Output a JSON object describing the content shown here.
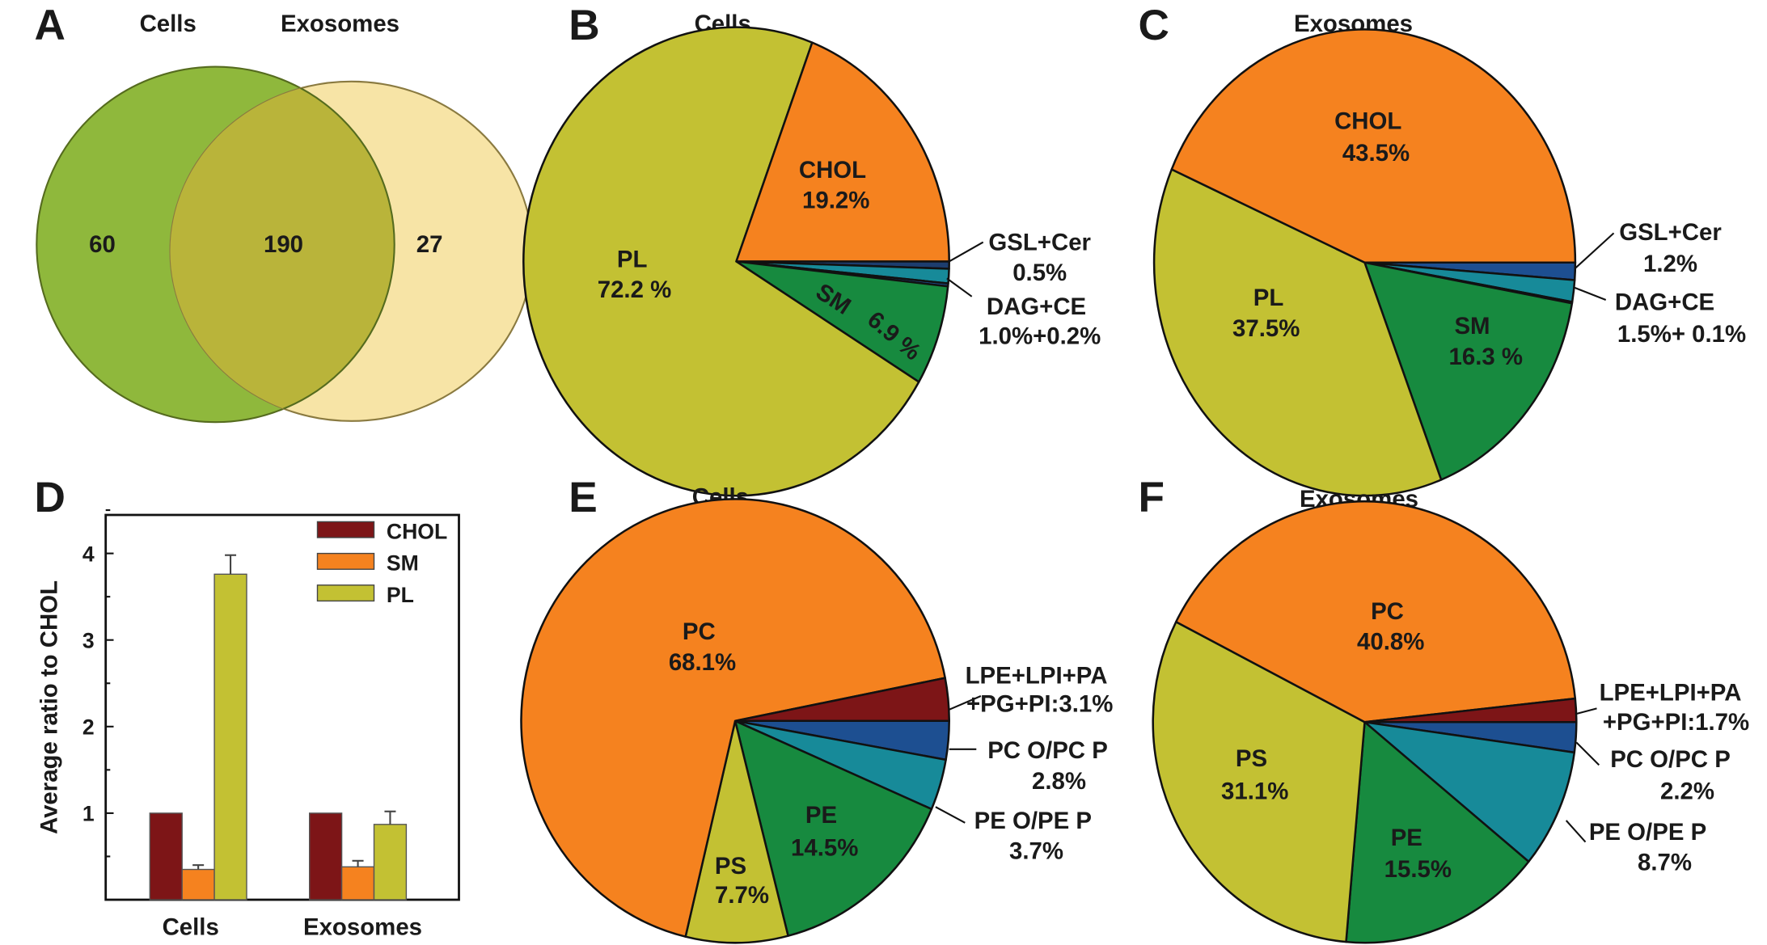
{
  "panels": {
    "A": "A",
    "B": "B",
    "C": "C",
    "D": "D",
    "E": "E",
    "F": "F"
  },
  "colors": {
    "orange": "#f5821f",
    "olive": "#c3c133",
    "green": "#178a3f",
    "navy": "#1d4f91",
    "teal": "#178a99",
    "darkred": "#7d1517",
    "venn_green": "#8fb83c",
    "venn_yellow": "#f7e4a6",
    "venn_overlap": "#b9b43a"
  },
  "chart_data": [
    {
      "panel": "A",
      "type": "venn",
      "set_labels": [
        "Cells",
        "Exosomes"
      ],
      "values": {
        "cells_only": "60",
        "both": "190",
        "exosomes_only": "27"
      }
    },
    {
      "panel": "B",
      "type": "pie",
      "title": "Cells",
      "slices": [
        {
          "name": "GSL+Cer",
          "value": 0.5,
          "color": "#1d3d6e"
        },
        {
          "name": "DAG",
          "value": 1.0,
          "color": "#178a99"
        },
        {
          "name": "CE",
          "value": 0.2,
          "color": "#1d4f91"
        },
        {
          "name": "SM",
          "value": 6.9,
          "color": "#178a3f"
        },
        {
          "name": "PL",
          "value": 72.2,
          "color": "#c3c133"
        },
        {
          "name": "CHOL",
          "value": 19.2,
          "color": "#f5821f"
        }
      ],
      "labels": {
        "chol": "CHOL",
        "chol_pct": "19.2%",
        "pl": "PL",
        "pl_pct": "72.2 %",
        "sm": "SM",
        "sm_pct": "6.9 %",
        "gsl": "GSL+Cer",
        "gsl_pct": "0.5%",
        "dag": "DAG+CE",
        "dag_pct": "1.0%+0.2%"
      }
    },
    {
      "panel": "C",
      "type": "pie",
      "title": "Exosomes",
      "slices": [
        {
          "name": "GSL+Cer",
          "value": 1.2,
          "color": "#1d4f91"
        },
        {
          "name": "DAG",
          "value": 1.5,
          "color": "#178a99"
        },
        {
          "name": "CE",
          "value": 0.1,
          "color": "#1d4f91"
        },
        {
          "name": "SM",
          "value": 16.3,
          "color": "#178a3f"
        },
        {
          "name": "PL",
          "value": 37.5,
          "color": "#c3c133"
        },
        {
          "name": "CHOL",
          "value": 43.5,
          "color": "#f5821f"
        }
      ],
      "labels": {
        "chol": "CHOL",
        "chol_pct": "43.5%",
        "pl": "PL",
        "pl_pct": "37.5%",
        "sm": "SM",
        "sm_pct": "16.3 %",
        "gsl": "GSL+Cer",
        "gsl_pct": "1.2%",
        "dag": "DAG+CE",
        "dag_pct": "1.5%+ 0.1%"
      }
    },
    {
      "panel": "D",
      "type": "bar",
      "categories": [
        "Cells",
        "Exosomes"
      ],
      "ylabel": "Average ratio to CHOL",
      "xlabel": "",
      "ylim": [
        0,
        4.5
      ],
      "yticks": [
        1,
        2,
        3,
        4
      ],
      "legend": "top-right",
      "series": [
        {
          "name": "CHOL",
          "values": [
            1.0,
            1.0
          ],
          "errors": [
            0,
            0
          ],
          "color": "#7d1517"
        },
        {
          "name": "SM",
          "values": [
            0.35,
            0.38
          ],
          "errors": [
            0.05,
            0.07
          ],
          "color": "#f5821f"
        },
        {
          "name": "PL",
          "values": [
            3.76,
            0.87
          ],
          "errors": [
            0.22,
            0.15
          ],
          "color": "#c3c133"
        }
      ]
    },
    {
      "panel": "E",
      "type": "pie",
      "title": "Cells",
      "slices": [
        {
          "name": "PC O/PC P",
          "value": 2.8,
          "color": "#1d4f91"
        },
        {
          "name": "PE O/PE P",
          "value": 3.7,
          "color": "#178a99"
        },
        {
          "name": "PE",
          "value": 14.5,
          "color": "#178a3f"
        },
        {
          "name": "PS",
          "value": 7.7,
          "color": "#c3c133"
        },
        {
          "name": "PC",
          "value": 68.1,
          "color": "#f5821f"
        },
        {
          "name": "LPE+LPI+PA+PG+PI",
          "value": 3.1,
          "color": "#7d1517"
        }
      ],
      "labels": {
        "pc": "PC",
        "pc_pct": "68.1%",
        "ps": "PS",
        "ps_pct": "7.7%",
        "pe": "PE",
        "pe_pct": "14.5%",
        "lpe1": "LPE+LPI+PA",
        "lpe2": "+PG+PI:3.1%",
        "pco": "PC O/PC P",
        "pco_pct": "2.8%",
        "peo": "PE O/PE P",
        "peo_pct": "3.7%"
      }
    },
    {
      "panel": "F",
      "type": "pie",
      "title": "Exosomes",
      "slices": [
        {
          "name": "PC O/PC P",
          "value": 2.2,
          "color": "#1d4f91"
        },
        {
          "name": "PE O/PE P",
          "value": 8.7,
          "color": "#178a99"
        },
        {
          "name": "PE",
          "value": 15.5,
          "color": "#178a3f"
        },
        {
          "name": "PS",
          "value": 31.1,
          "color": "#c3c133"
        },
        {
          "name": "PC",
          "value": 40.8,
          "color": "#f5821f"
        },
        {
          "name": "LPE+LPI+PA+PG+PI",
          "value": 1.7,
          "color": "#7d1517"
        }
      ],
      "labels": {
        "pc": "PC",
        "pc_pct": "40.8%",
        "ps": "PS",
        "ps_pct": "31.1%",
        "pe": "PE",
        "pe_pct": "15.5%",
        "lpe1": "LPE+LPI+PA",
        "lpe2": "+PG+PI:1.7%",
        "pco": "PC O/PC P",
        "pco_pct": "2.2%",
        "peo": "PE O/PE P",
        "peo_pct": "8.7%"
      }
    }
  ]
}
